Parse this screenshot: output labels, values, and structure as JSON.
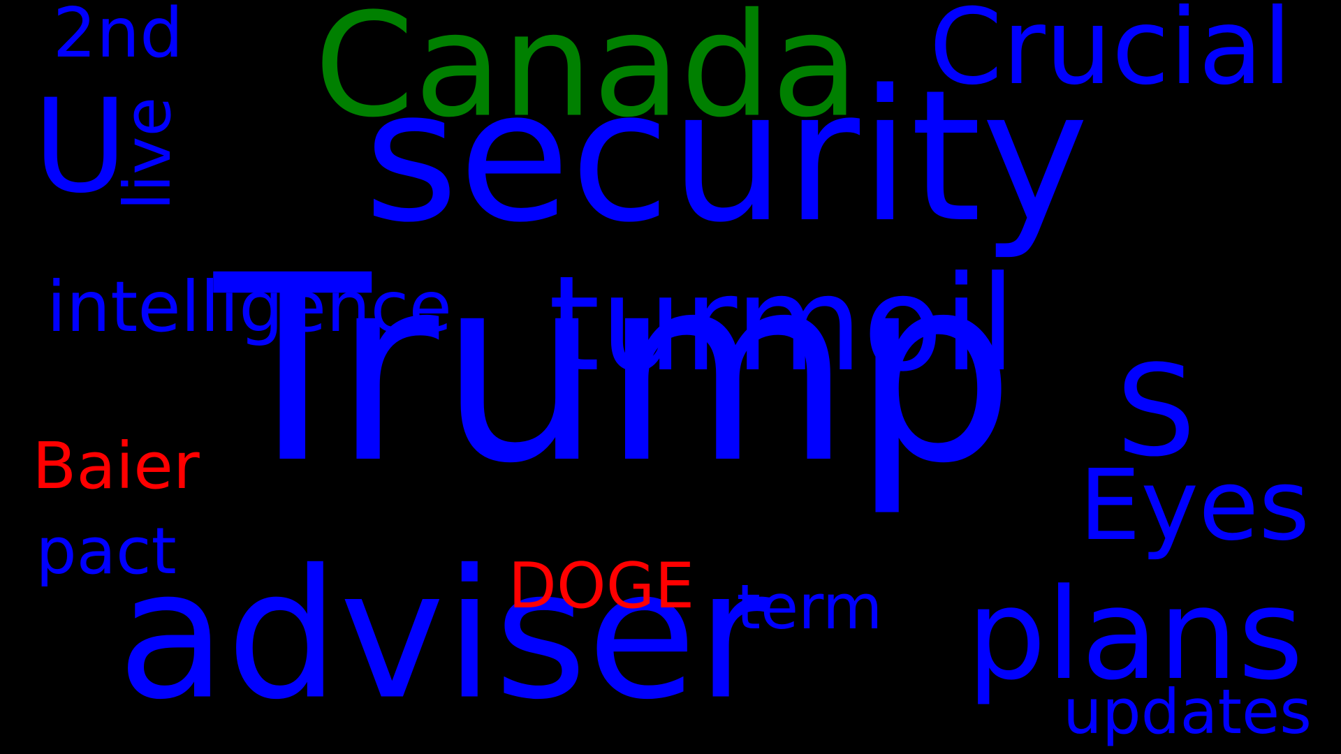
{
  "colors": {
    "background": "#000000",
    "blue": "#0000ff",
    "green": "#008000",
    "red": "#ff0000"
  },
  "words": {
    "trump": "Trump",
    "security": "security",
    "adviser": "adviser",
    "canada": "Canada",
    "turmoil": "turmoil",
    "plans": "plans",
    "crucial": "Crucial",
    "eyes": "Eyes",
    "u": "U",
    "s": "S",
    "intelligence": "intelligence",
    "second": "2nd",
    "live": "live",
    "baier": "Baier",
    "pact": "pact",
    "doge": "DOGE",
    "term": "term",
    "updates": "updates"
  }
}
